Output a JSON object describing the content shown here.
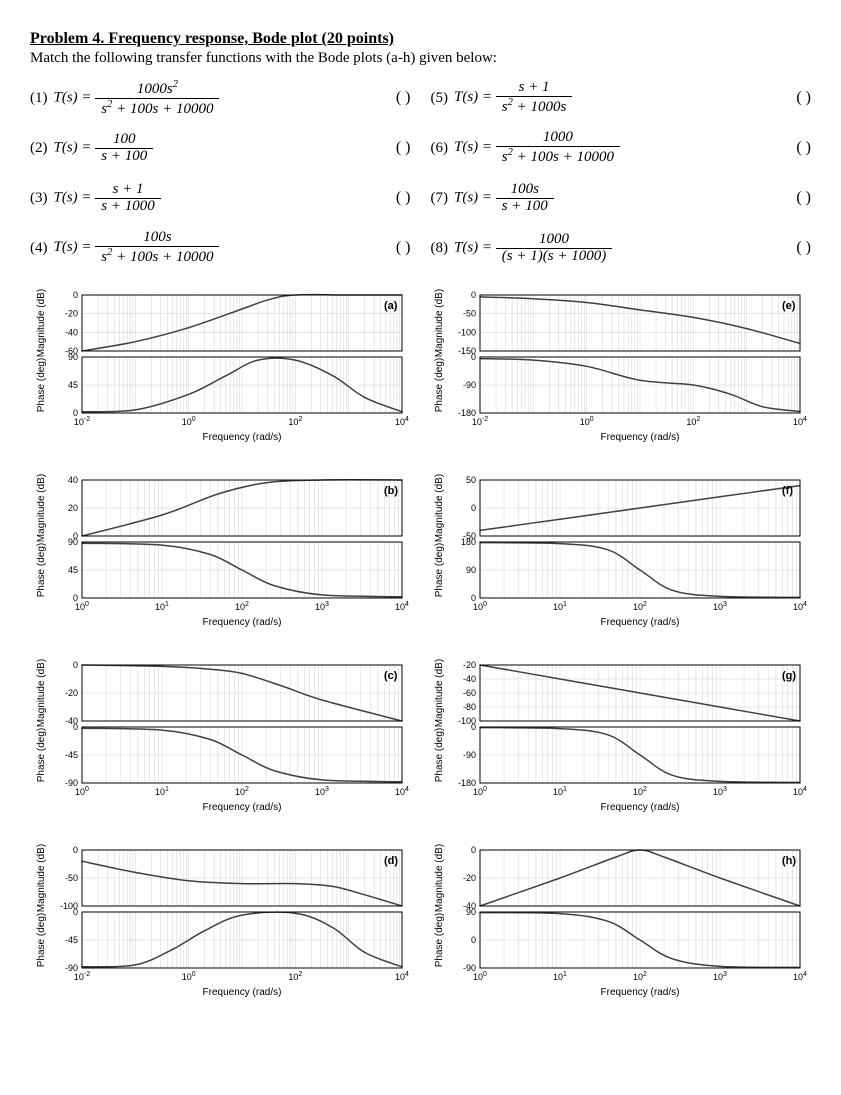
{
  "title": "Problem 4. Frequency response, Bode plot (20 points)",
  "intro": "Match the following transfer functions with the Bode plots (a-h) given below:",
  "blank": "(     )",
  "tfs": [
    {
      "n": "(1)",
      "lhs": "T(s) =",
      "num": "1000s²",
      "den": "s² + 100s + 10000"
    },
    {
      "n": "(5)",
      "lhs": "T(s) =",
      "num": "s + 1",
      "den": "s² + 1000s"
    },
    {
      "n": "(2)",
      "lhs": "T(s) =",
      "num": "100",
      "den": "s + 100"
    },
    {
      "n": "(6)",
      "lhs": "T(s) =",
      "num": "1000",
      "den": "s² + 100s + 10000"
    },
    {
      "n": "(3)",
      "lhs": "T(s) =",
      "num": "s + 1",
      "den": "s + 1000"
    },
    {
      "n": "(7)",
      "lhs": "T(s) =",
      "num": "100s",
      "den": "s + 100"
    },
    {
      "n": "(4)",
      "lhs": "T(s) =",
      "num": "100s",
      "den": "s² + 100s + 10000"
    },
    {
      "n": "(8)",
      "lhs": "T(s) =",
      "num": "1000",
      "den": "(s + 1)(s + 1000)"
    }
  ],
  "x_label": "Frequency (rad/s)",
  "mag_label": "Magnitude (dB)",
  "phase_label": "Phase (deg)",
  "plots": [
    {
      "letter": "(a)",
      "xticks": [
        "10⁻²",
        "10⁰",
        "10²",
        "10⁴"
      ],
      "xdec": 6,
      "mag": {
        "ylim": [
          -60,
          0
        ],
        "yticks": [
          -60,
          -40,
          -20,
          0
        ],
        "pts": [
          [
            -2,
            -60
          ],
          [
            -1,
            -50
          ],
          [
            0,
            -35
          ],
          [
            1,
            -15
          ],
          [
            1.5,
            -5
          ],
          [
            2,
            0
          ],
          [
            3,
            0
          ],
          [
            4,
            0
          ]
        ]
      },
      "ph": {
        "ylim": [
          0,
          90
        ],
        "yticks": [
          0,
          45,
          90
        ],
        "pts": [
          [
            -2,
            2
          ],
          [
            -1,
            5
          ],
          [
            0,
            30
          ],
          [
            0.7,
            60
          ],
          [
            1.3,
            85
          ],
          [
            2,
            85
          ],
          [
            2.7,
            60
          ],
          [
            3.3,
            25
          ],
          [
            4,
            2
          ]
        ]
      }
    },
    {
      "letter": "(e)",
      "xticks": [
        "10⁻²",
        "10⁰",
        "10²",
        "10⁴"
      ],
      "xdec": 6,
      "mag": {
        "ylim": [
          -150,
          0
        ],
        "yticks": [
          -150,
          -100,
          -50,
          0
        ],
        "pts": [
          [
            -2,
            -5
          ],
          [
            -1,
            -10
          ],
          [
            0,
            -20
          ],
          [
            1,
            -40
          ],
          [
            2,
            -60
          ],
          [
            3,
            -90
          ],
          [
            4,
            -130
          ]
        ]
      },
      "ph": {
        "ylim": [
          -180,
          0
        ],
        "yticks": [
          -180,
          -90,
          0
        ],
        "pts": [
          [
            -2,
            -5
          ],
          [
            -1,
            -10
          ],
          [
            0,
            -30
          ],
          [
            1,
            -75
          ],
          [
            2,
            -90
          ],
          [
            2.7,
            -120
          ],
          [
            3.3,
            -160
          ],
          [
            4,
            -175
          ]
        ]
      }
    },
    {
      "letter": "(b)",
      "xticks": [
        "10⁰",
        "10¹",
        "10²",
        "10³",
        "10⁴"
      ],
      "xdec": 4,
      "mag": {
        "ylim": [
          0,
          40
        ],
        "yticks": [
          0,
          20,
          40
        ],
        "pts": [
          [
            0,
            0
          ],
          [
            1,
            15
          ],
          [
            1.7,
            30
          ],
          [
            2.3,
            38
          ],
          [
            3,
            40
          ],
          [
            4,
            40
          ]
        ]
      },
      "ph": {
        "ylim": [
          0,
          90
        ],
        "yticks": [
          0,
          45,
          90
        ],
        "pts": [
          [
            0,
            88
          ],
          [
            1,
            85
          ],
          [
            1.6,
            70
          ],
          [
            2,
            45
          ],
          [
            2.4,
            20
          ],
          [
            3,
            5
          ],
          [
            4,
            2
          ]
        ]
      }
    },
    {
      "letter": "(f)",
      "xticks": [
        "10⁰",
        "10¹",
        "10²",
        "10³",
        "10⁴"
      ],
      "xdec": 4,
      "mag": {
        "ylim": [
          -50,
          50
        ],
        "yticks": [
          -50,
          0,
          50
        ],
        "pts": [
          [
            0,
            -40
          ],
          [
            1,
            -20
          ],
          [
            2,
            0
          ],
          [
            3,
            20
          ],
          [
            4,
            40
          ]
        ]
      },
      "ph": {
        "ylim": [
          0,
          180
        ],
        "yticks": [
          0,
          90,
          180
        ],
        "pts": [
          [
            0,
            178
          ],
          [
            1,
            175
          ],
          [
            1.6,
            155
          ],
          [
            2,
            90
          ],
          [
            2.4,
            25
          ],
          [
            3,
            5
          ],
          [
            4,
            2
          ]
        ]
      }
    },
    {
      "letter": "(c)",
      "xticks": [
        "10⁰",
        "10¹",
        "10²",
        "10³",
        "10⁴"
      ],
      "xdec": 4,
      "mag": {
        "ylim": [
          -40,
          0
        ],
        "yticks": [
          -40,
          -20,
          0
        ],
        "pts": [
          [
            0,
            0
          ],
          [
            1,
            -1
          ],
          [
            1.6,
            -3
          ],
          [
            2,
            -6
          ],
          [
            2.5,
            -15
          ],
          [
            3,
            -25
          ],
          [
            4,
            -40
          ]
        ]
      },
      "ph": {
        "ylim": [
          -90,
          0
        ],
        "yticks": [
          -90,
          -45,
          0
        ],
        "pts": [
          [
            0,
            -2
          ],
          [
            1,
            -5
          ],
          [
            1.6,
            -20
          ],
          [
            2,
            -45
          ],
          [
            2.4,
            -70
          ],
          [
            3,
            -85
          ],
          [
            4,
            -88
          ]
        ]
      }
    },
    {
      "letter": "(g)",
      "xticks": [
        "10⁰",
        "10¹",
        "10²",
        "10³",
        "10⁴"
      ],
      "xdec": 4,
      "mag": {
        "ylim": [
          -100,
          -20
        ],
        "yticks": [
          -100,
          -80,
          -60,
          -40,
          -20
        ],
        "pts": [
          [
            0,
            -20
          ],
          [
            1,
            -40
          ],
          [
            2,
            -60
          ],
          [
            3,
            -80
          ],
          [
            4,
            -100
          ]
        ]
      },
      "ph": {
        "ylim": [
          -180,
          0
        ],
        "yticks": [
          -180,
          -90,
          0
        ],
        "pts": [
          [
            0,
            -2
          ],
          [
            1,
            -5
          ],
          [
            1.6,
            -25
          ],
          [
            2,
            -90
          ],
          [
            2.4,
            -155
          ],
          [
            3,
            -175
          ],
          [
            4,
            -178
          ]
        ]
      }
    },
    {
      "letter": "(d)",
      "xticks": [
        "10⁻²",
        "10⁰",
        "10²",
        "10⁴"
      ],
      "xdec": 6,
      "mag": {
        "ylim": [
          -100,
          0
        ],
        "yticks": [
          -100,
          -50,
          0
        ],
        "pts": [
          [
            -2,
            -20
          ],
          [
            -1,
            -40
          ],
          [
            0,
            -55
          ],
          [
            1,
            -60
          ],
          [
            2,
            -60
          ],
          [
            2.7,
            -65
          ],
          [
            3.3,
            -80
          ],
          [
            4,
            -100
          ]
        ]
      },
      "ph": {
        "ylim": [
          -90,
          0
        ],
        "yticks": [
          -90,
          -45,
          0
        ],
        "pts": [
          [
            -2,
            -88
          ],
          [
            -1,
            -85
          ],
          [
            -0.3,
            -60
          ],
          [
            0.3,
            -30
          ],
          [
            1,
            -5
          ],
          [
            2,
            -2
          ],
          [
            2.7,
            -25
          ],
          [
            3.3,
            -65
          ],
          [
            4,
            -88
          ]
        ]
      }
    },
    {
      "letter": "(h)",
      "xticks": [
        "10⁰",
        "10¹",
        "10²",
        "10³",
        "10⁴"
      ],
      "xdec": 4,
      "mag": {
        "ylim": [
          -40,
          0
        ],
        "yticks": [
          -40,
          -20,
          0
        ],
        "pts": [
          [
            0,
            -40
          ],
          [
            1,
            -20
          ],
          [
            1.7,
            -5
          ],
          [
            2,
            0
          ],
          [
            2.3,
            -5
          ],
          [
            3,
            -20
          ],
          [
            4,
            -40
          ]
        ]
      },
      "ph": {
        "ylim": [
          -90,
          90
        ],
        "yticks": [
          -90,
          0,
          90
        ],
        "pts": [
          [
            0,
            88
          ],
          [
            1,
            85
          ],
          [
            1.6,
            60
          ],
          [
            2,
            0
          ],
          [
            2.4,
            -60
          ],
          [
            3,
            -85
          ],
          [
            4,
            -88
          ]
        ]
      }
    }
  ]
}
